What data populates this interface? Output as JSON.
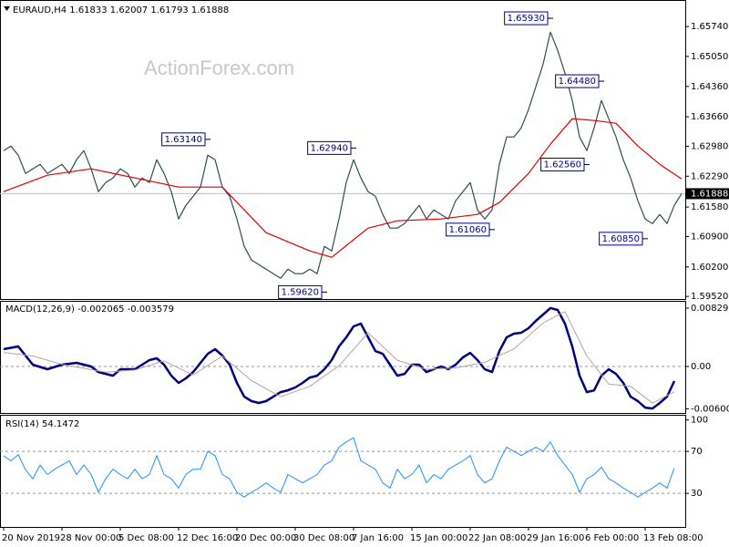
{
  "chart_data": [
    {
      "type": "line",
      "title": "EURAUD,H4  1.61833 1.62007 1.61793 1.61888",
      "watermark": "ActionForex.com",
      "xlim": [
        -0.5,
        93.5
      ],
      "ylim": [
        1.5946,
        1.6633
      ],
      "yticks": [
        {
          "value": 1.5952,
          "label": "1.59520"
        },
        {
          "value": 1.602,
          "label": "1.60200"
        },
        {
          "value": 1.609,
          "label": "1.60900"
        },
        {
          "value": 1.6158,
          "label": "1.61580"
        },
        {
          "value": 1.6229,
          "label": "1.62290"
        },
        {
          "value": 1.6298,
          "label": "1.62980"
        },
        {
          "value": 1.6366,
          "label": "1.63660"
        },
        {
          "value": 1.6436,
          "label": "1.64360"
        },
        {
          "value": 1.6505,
          "label": "1.65050"
        },
        {
          "value": 1.6574,
          "label": "1.65740"
        }
      ],
      "current": {
        "value": 1.61888,
        "label": "1.61888"
      },
      "series": [
        {
          "color": "#2f4f4f",
          "values": [
            1.6288,
            1.62985,
            1.62775,
            1.62355,
            1.6246,
            1.62565,
            1.62355,
            1.6246,
            1.62565,
            1.62355,
            1.6267,
            1.6288,
            1.6246,
            1.61935,
            1.62145,
            1.6225,
            1.6246,
            1.62355,
            1.6204,
            1.6225,
            1.62145,
            1.6267,
            1.62355,
            1.61935,
            1.61305,
            1.6162,
            1.6183,
            1.6204,
            1.62775,
            1.6267,
            1.6204,
            1.6183,
            1.61305,
            1.60675,
            1.6036,
            1.60255,
            1.6015,
            1.60045,
            1.5994,
            1.6015,
            1.60045,
            1.60045,
            1.6015,
            1.60045,
            1.60675,
            1.6057,
            1.61305,
            1.62145,
            1.6267,
            1.6225,
            1.61935,
            1.6183,
            1.6141,
            1.61095,
            1.61095,
            1.612,
            1.6141,
            1.6162,
            1.61305,
            1.61515,
            1.6141,
            1.61305,
            1.61725,
            1.61935,
            1.62145,
            1.61515,
            1.61305,
            1.61515,
            1.62565,
            1.63195,
            1.63195,
            1.63405,
            1.63825,
            1.6435,
            1.64875,
            1.6561,
            1.6519,
            1.64665,
            1.64035,
            1.63195,
            1.6288,
            1.63405,
            1.64035,
            1.63615,
            1.63195,
            1.6267,
            1.6225,
            1.61725,
            1.61305,
            1.612,
            1.6141,
            1.612,
            1.6162,
            1.61888
          ]
        },
        {
          "color": "#e00000",
          "x": [
            0,
            6,
            12,
            18,
            24,
            30,
            36,
            42,
            45,
            50,
            54,
            60,
            65,
            68,
            72,
            75,
            78,
            81,
            84,
            87,
            90,
            93
          ],
          "values": [
            1.61935,
            1.62313,
            1.6246,
            1.6225,
            1.6204,
            1.6204,
            1.6099,
            1.6057,
            1.60423,
            1.61095,
            1.61263,
            1.61305,
            1.6141,
            1.61683,
            1.62355,
            1.63027,
            1.63615,
            1.63573,
            1.6351,
            1.62985,
            1.62565,
            1.62229
          ]
        }
      ],
      "annotations": [
        {
          "x": 75,
          "value": 1.6593,
          "label": "1.65930"
        },
        {
          "x": 82,
          "value": 1.6448,
          "label": "1.64480"
        },
        {
          "x": 28,
          "value": 1.6314,
          "label": "1.63140"
        },
        {
          "x": 48,
          "value": 1.6294,
          "label": "1.62940"
        },
        {
          "x": 80,
          "value": 1.6256,
          "label": "1.62560"
        },
        {
          "x": 67,
          "value": 1.6106,
          "label": "1.61060"
        },
        {
          "x": 88,
          "value": 1.6085,
          "label": "1.60850"
        },
        {
          "x": 44,
          "value": 1.5962,
          "label": "1.59620"
        }
      ]
    },
    {
      "type": "line",
      "title": "MACD(12,26,9) -0.002065 -0.003579",
      "xlim": [
        -0.5,
        93.5
      ],
      "ylim": [
        -0.0066,
        0.0092
      ],
      "yticks": [
        -0.006007,
        {
          "value": 0,
          "label": "0.00"
        },
        0.008295
      ],
      "series": [
        {
          "color": "#000080",
          "width": 2.5,
          "x": [
            0,
            2,
            4,
            6,
            8,
            10,
            12,
            13,
            14,
            15,
            16,
            17,
            18,
            19,
            20,
            21,
            22,
            23,
            24,
            25,
            26,
            27,
            28,
            29,
            30,
            31,
            32,
            33,
            34,
            35,
            36,
            37,
            38,
            39,
            40,
            41,
            42,
            43,
            44,
            45,
            46,
            47,
            48,
            49,
            50,
            51,
            52,
            53,
            54,
            55,
            56,
            57,
            58,
            59,
            60,
            61,
            62,
            63,
            64,
            65,
            66,
            67,
            68,
            69,
            70,
            71,
            72,
            73,
            74,
            75,
            76,
            77,
            78,
            79,
            80,
            81,
            82,
            83,
            84,
            85,
            86,
            87,
            88,
            89,
            90,
            91,
            92
          ],
          "values": [
            0.00246,
            0.00285,
            0.00026,
            -0.00039,
            0.00026,
            0.00052,
            0,
            -0.00078,
            -0.00104,
            -0.0013,
            -0.00039,
            -0.00039,
            -0.00039,
            0.00026,
            0.00091,
            0.00117,
            0.00026,
            -0.0013,
            -0.00233,
            -0.00168,
            -0.00078,
            0.00052,
            0.00181,
            0.00246,
            0.00156,
            0.00026,
            -0.00233,
            -0.00428,
            -0.00492,
            -0.00518,
            -0.00492,
            -0.00428,
            -0.00363,
            -0.00337,
            -0.00298,
            -0.00233,
            -0.00156,
            -0.0013,
            -0.00039,
            0.00091,
            0.00285,
            0.00415,
            0.0057,
            0.00609,
            0.00415,
            0.0022,
            0.00181,
            0.00026,
            -0.0013,
            -0.00104,
            0.00026,
            0.00026,
            -0.00078,
            -0.00039,
            0,
            -0.00039,
            0.00026,
            0.0013,
            0.00194,
            0.00091,
            -0.00039,
            -0.00078,
            0.0022,
            0.00415,
            0.00467,
            0.0048,
            0.00544,
            0.00648,
            0.00739,
            0.0083,
            0.00804,
            0.00609,
            0.00285,
            -0.0013,
            -0.00363,
            -0.00337,
            -0.0013,
            -0.00039,
            -0.00104,
            -0.00233,
            -0.00428,
            -0.00492,
            -0.00583,
            -0.00596,
            -0.00518,
            -0.00428,
            -0.00207
          ]
        },
        {
          "color": "#c0a0a0",
          "width": 1,
          "x": [
            0,
            4,
            8,
            14,
            18,
            22,
            26,
            30,
            34,
            38,
            42,
            46,
            50,
            54,
            58,
            62,
            66,
            70,
            74,
            77,
            80,
            83,
            86,
            89,
            92
          ],
          "values": [
            0.002,
            0.0015,
            0.0003,
            -0.0008,
            -0.0005,
            0.0008,
            -0.0012,
            0.0015,
            -0.002,
            -0.0043,
            -0.0028,
            0.0001,
            0.0048,
            0.0009,
            -0.0004,
            -0.0002,
            0.0006,
            0.0025,
            0.0062,
            0.0078,
            0.0015,
            -0.0025,
            -0.0028,
            -0.0052,
            -0.00358
          ]
        }
      ]
    },
    {
      "type": "line",
      "title": "RSI(14) 54.1472",
      "xlim": [
        -0.5,
        93.5
      ],
      "ylim": [
        -2,
        104
      ],
      "yticks": [
        30,
        70,
        100
      ],
      "xticks": [
        {
          "value": 0,
          "label": "20 Nov 2019"
        },
        {
          "value": 8,
          "label": "28 Nov 00:00"
        },
        {
          "value": 16,
          "label": "5 Dec 08:00"
        },
        {
          "value": 24,
          "label": "12 Dec 16:00"
        },
        {
          "value": 32,
          "label": "20 Dec 00:00"
        },
        {
          "value": 40,
          "label": "30 Dec 08:00"
        },
        {
          "value": 48,
          "label": "7 Jan 16:00"
        },
        {
          "value": 56,
          "label": "15 Jan 00:00"
        },
        {
          "value": 64,
          "label": "22 Jan 08:00"
        },
        {
          "value": 72,
          "label": "29 Jan 16:00"
        },
        {
          "value": 80,
          "label": "6 Feb 00:00"
        },
        {
          "value": 88,
          "label": "13 Feb 08:00"
        }
      ],
      "series": [
        {
          "color": "#1e90ff",
          "width": 1,
          "values": [
            65.7,
            61,
            67,
            52.6,
            44,
            57,
            48,
            53,
            57,
            61,
            48,
            57,
            48,
            31,
            44,
            53,
            48,
            44,
            53,
            44,
            48,
            66,
            48,
            44,
            35,
            48,
            53,
            53,
            70,
            66,
            48,
            44,
            31,
            26.5,
            31,
            35,
            40,
            35,
            31,
            48,
            44,
            40,
            44,
            48,
            57,
            61,
            74,
            79,
            83,
            61,
            57,
            53,
            40,
            35,
            53,
            44,
            48,
            57,
            40,
            48,
            44,
            53,
            57,
            61,
            66,
            48,
            40,
            44,
            61,
            74,
            70,
            66,
            70,
            74,
            70,
            79,
            66,
            57,
            48,
            31,
            44,
            48,
            55,
            44,
            40,
            35,
            31,
            26.5,
            31,
            35,
            40,
            35,
            54.1
          ]
        }
      ]
    }
  ]
}
